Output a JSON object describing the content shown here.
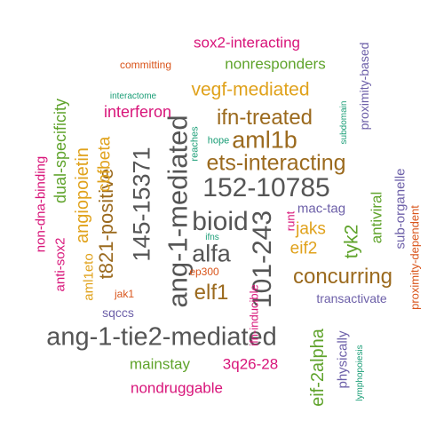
{
  "palette": {
    "gray": "#555555",
    "olive": "#9b6a1e",
    "green": "#5fa32b",
    "orange": "#e0a21c",
    "magenta": "#d8157a",
    "purple": "#6c5fa8",
    "teal": "#1b9e77",
    "rust": "#d9541a"
  },
  "words": [
    {
      "id": "ang-1-tie2-mediated",
      "text": "ang-1-tie2-mediated",
      "color": "gray"
    },
    {
      "id": "ang-1-mediated",
      "text": "ang-1-mediated",
      "color": "gray"
    },
    {
      "id": "145-15371",
      "text": "145-15371",
      "color": "gray"
    },
    {
      "id": "101-243",
      "text": "101-243",
      "color": "gray"
    },
    {
      "id": "152-10785",
      "text": "152-10785",
      "color": "gray"
    },
    {
      "id": "bioid",
      "text": "bioid",
      "color": "gray"
    },
    {
      "id": "alfa",
      "text": "alfa",
      "color": "gray"
    },
    {
      "id": "aml1b",
      "text": "aml1b",
      "color": "olive"
    },
    {
      "id": "ifn-treated",
      "text": "ifn-treated",
      "color": "olive"
    },
    {
      "id": "ets-interacting",
      "text": "ets-interacting",
      "color": "olive"
    },
    {
      "id": "concurring",
      "text": "concurring",
      "color": "olive"
    },
    {
      "id": "elf1",
      "text": "elf1",
      "color": "olive"
    },
    {
      "id": "t821-positive",
      "text": "t821-positive",
      "color": "olive"
    },
    {
      "id": "cbfbeta",
      "text": "cbfbeta",
      "color": "orange"
    },
    {
      "id": "angiopoietin",
      "text": "angiopoietin",
      "color": "orange"
    },
    {
      "id": "vegf-mediated",
      "text": "vegf-mediated",
      "color": "orange"
    },
    {
      "id": "eif2",
      "text": "eif2",
      "color": "orange"
    },
    {
      "id": "jaks",
      "text": "jaks",
      "color": "orange"
    },
    {
      "id": "aml1eto",
      "text": "aml1eto",
      "color": "orange"
    },
    {
      "id": "nonresponders",
      "text": "nonresponders",
      "color": "green"
    },
    {
      "id": "dual-specificity",
      "text": "dual-specificity",
      "color": "green"
    },
    {
      "id": "eif-2alpha",
      "text": "eif-2alpha",
      "color": "green"
    },
    {
      "id": "tyk2",
      "text": "tyk2",
      "color": "green"
    },
    {
      "id": "antiviral",
      "text": "antiviral",
      "color": "green"
    },
    {
      "id": "mainstay",
      "text": "mainstay",
      "color": "green"
    },
    {
      "id": "sox2-interacting",
      "text": "sox2-interacting",
      "color": "magenta"
    },
    {
      "id": "interferon",
      "text": "interferon",
      "color": "magenta"
    },
    {
      "id": "non-dna-binding",
      "text": "non-dna-binding",
      "color": "magenta"
    },
    {
      "id": "anti-sox2",
      "text": "anti-sox2",
      "color": "magenta"
    },
    {
      "id": "nondruggable",
      "text": "nondruggable",
      "color": "magenta"
    },
    {
      "id": "3q26-28",
      "text": "3q26-28",
      "color": "magenta"
    },
    {
      "id": "runt",
      "text": "runt",
      "color": "magenta"
    },
    {
      "id": "ifn-inducible",
      "text": "ifn-inducible",
      "color": "magenta"
    },
    {
      "id": "proximity-based",
      "text": "proximity-based",
      "color": "purple"
    },
    {
      "id": "sub-organelle",
      "text": "sub-organelle",
      "color": "purple"
    },
    {
      "id": "mac-tag",
      "text": "mac-tag",
      "color": "purple"
    },
    {
      "id": "transactivate",
      "text": "transactivate",
      "color": "purple"
    },
    {
      "id": "physically",
      "text": "physically",
      "color": "purple"
    },
    {
      "id": "sqccs",
      "text": "sqccs",
      "color": "purple"
    },
    {
      "id": "subdomain",
      "text": "subdomain",
      "color": "teal"
    },
    {
      "id": "interactome",
      "text": "interactome",
      "color": "teal"
    },
    {
      "id": "hope",
      "text": "hope",
      "color": "teal"
    },
    {
      "id": "reaches",
      "text": "reaches",
      "color": "teal"
    },
    {
      "id": "ifns",
      "text": "ifns",
      "color": "teal"
    },
    {
      "id": "lymphopoiesis",
      "text": "lymphopoiesis",
      "color": "teal"
    },
    {
      "id": "committing",
      "text": "committing",
      "color": "rust"
    },
    {
      "id": "proximity-dependent",
      "text": "proximity-dependent",
      "color": "rust"
    },
    {
      "id": "ep300",
      "text": "ep300",
      "color": "rust"
    },
    {
      "id": "jak1",
      "text": "jak1",
      "color": "rust"
    }
  ]
}
